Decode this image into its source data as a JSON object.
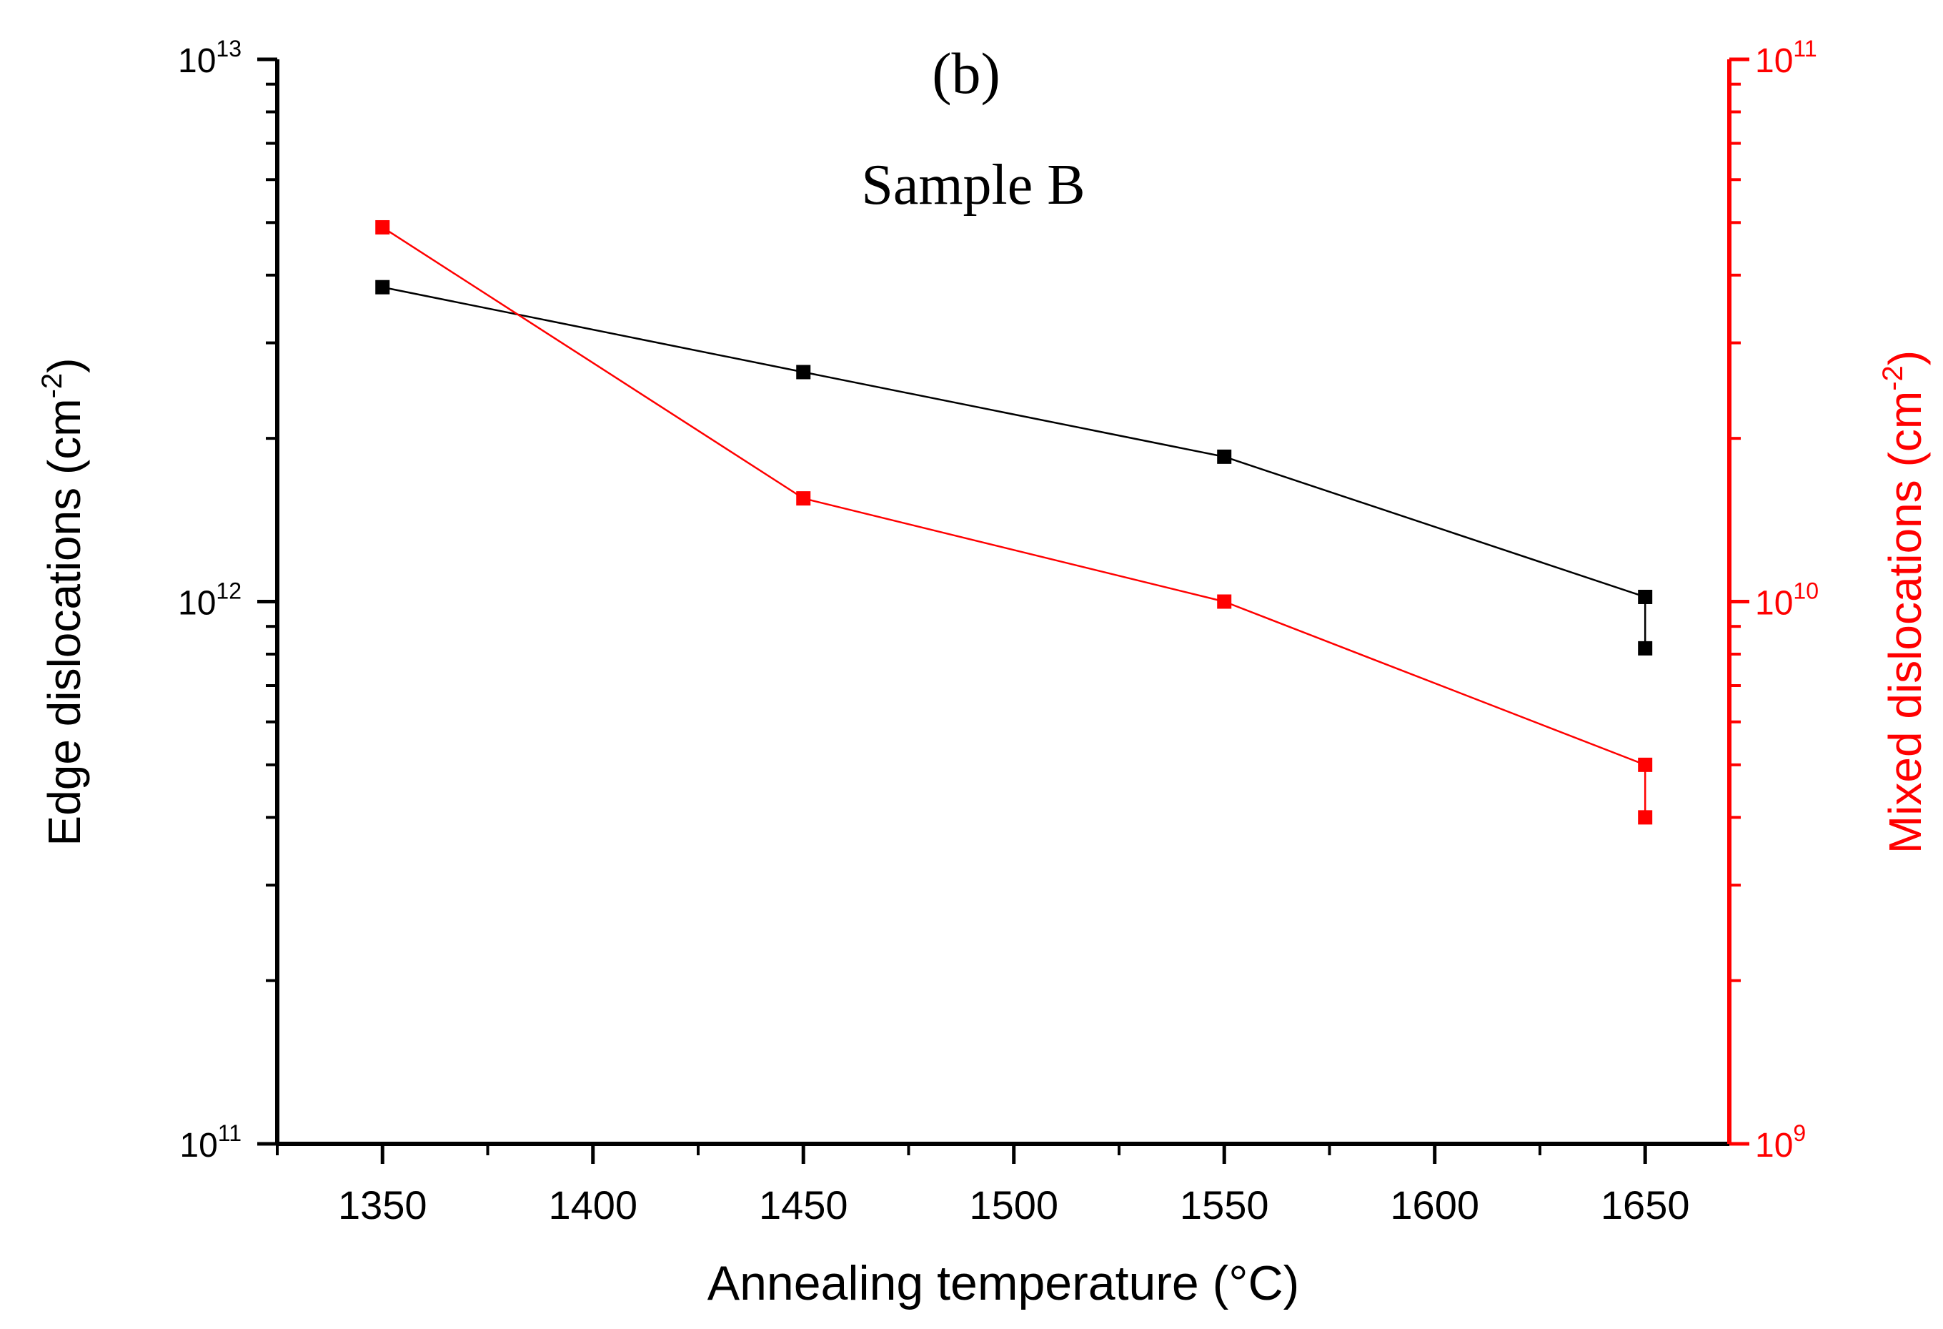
{
  "chart_data": {
    "type": "line",
    "panel_label": "(b)",
    "title": "Sample B",
    "xlabel": "Annealing temperature (°C)",
    "ylabel_left": {
      "text": "Edge dislocations (cm",
      "sup": "-2",
      "close": ")"
    },
    "ylabel_right": {
      "text": "Mixed dislocations (cm",
      "sup": "-2",
      "close": ")"
    },
    "xlim": [
      1325,
      1670
    ],
    "x_ticks": [
      1350,
      1400,
      1450,
      1500,
      1550,
      1600,
      1650
    ],
    "x_tick_labels": [
      "1350",
      "1400",
      "1450",
      "1500",
      "1550",
      "1600",
      "1650"
    ],
    "y_left": {
      "scale": "log",
      "lim": [
        100000000000.0,
        10000000000000.0
      ],
      "ticks": [
        {
          "base": "10",
          "exp": "11"
        },
        {
          "base": "10",
          "exp": "12"
        },
        {
          "base": "10",
          "exp": "13"
        }
      ]
    },
    "y_right": {
      "scale": "log",
      "lim": [
        1000000000.0,
        100000000000.0
      ],
      "ticks": [
        {
          "base": "10",
          "exp": "9"
        },
        {
          "base": "10",
          "exp": "10"
        },
        {
          "base": "10",
          "exp": "11"
        }
      ]
    },
    "series": [
      {
        "name": "Edge dislocations",
        "axis": "left",
        "color": "#000000",
        "x": [
          1350,
          1450,
          1550,
          1650,
          1650
        ],
        "y": [
          3800000000000.0,
          2650000000000.0,
          1850000000000.0,
          1020000000000.0,
          820000000000.0
        ]
      },
      {
        "name": "Mixed dislocations",
        "axis": "right",
        "color": "#ff0000",
        "x": [
          1350,
          1450,
          1550,
          1650,
          1650
        ],
        "y": [
          49000000000.0,
          15500000000.0,
          10000000000.0,
          5000000000.0,
          4000000000.0
        ]
      }
    ]
  },
  "colors": {
    "left_axis": "#000000",
    "right_axis": "#ff0000"
  }
}
